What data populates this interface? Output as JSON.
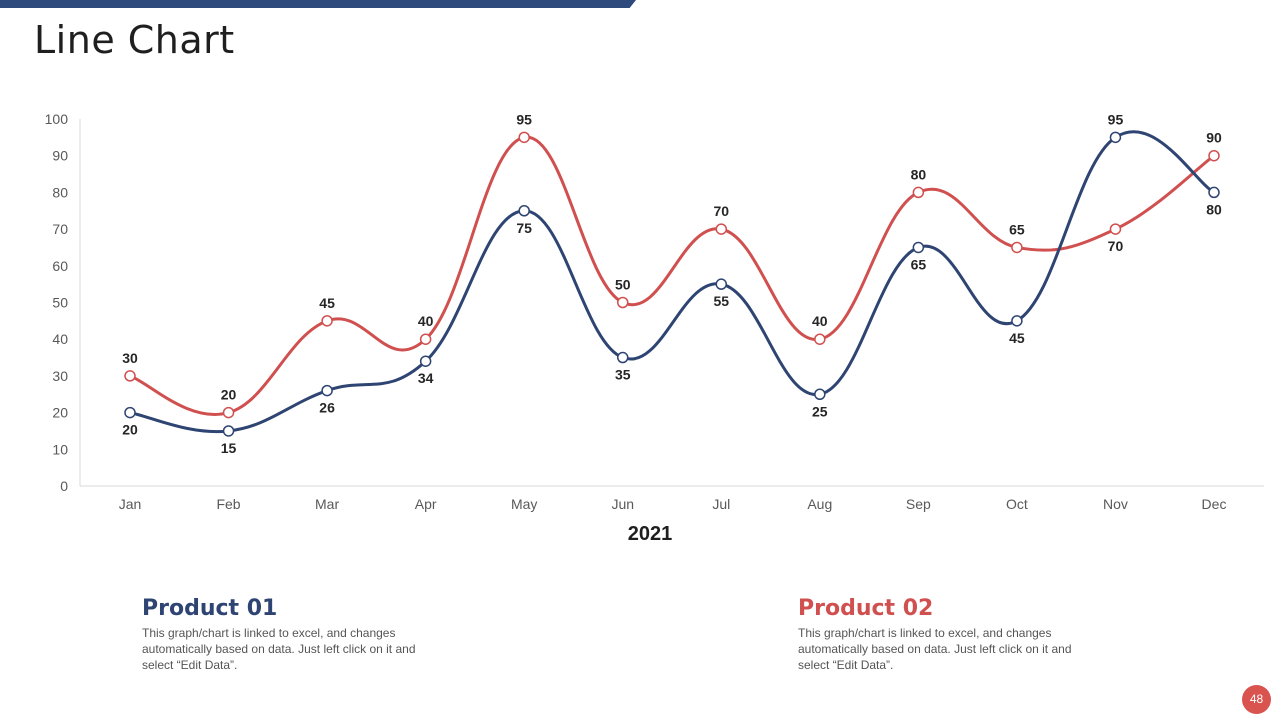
{
  "page": {
    "title": "Line Chart",
    "page_number": "48"
  },
  "chart_data": {
    "type": "line",
    "title": "Line Chart",
    "xlabel": "2021",
    "ylabel": "",
    "categories": [
      "Jan",
      "Feb",
      "Mar",
      "Apr",
      "May",
      "Jun",
      "Jul",
      "Aug",
      "Sep",
      "Oct",
      "Nov",
      "Dec"
    ],
    "yticks": [
      0,
      10,
      20,
      30,
      40,
      50,
      60,
      70,
      80,
      90,
      100
    ],
    "ylim": [
      0,
      100
    ],
    "series": [
      {
        "name": "Product 01",
        "color": "#2e4472",
        "values": [
          20,
          15,
          26,
          34,
          75,
          35,
          55,
          25,
          65,
          45,
          95,
          80
        ]
      },
      {
        "name": "Product 02",
        "color": "#d0504f",
        "values": [
          30,
          20,
          45,
          40,
          95,
          50,
          70,
          40,
          80,
          65,
          70,
          90
        ]
      }
    ]
  },
  "legend": [
    {
      "name": "Product 01",
      "color": "#2e4472",
      "description": "This graph/chart is linked to excel, and changes automatically based on data. Just left click on it and select “Edit Data”."
    },
    {
      "name": "Product 02",
      "color": "#d0504f",
      "description": "This graph/chart is linked to excel, and changes automatically based on data. Just left click on it and select “Edit Data”."
    }
  ]
}
